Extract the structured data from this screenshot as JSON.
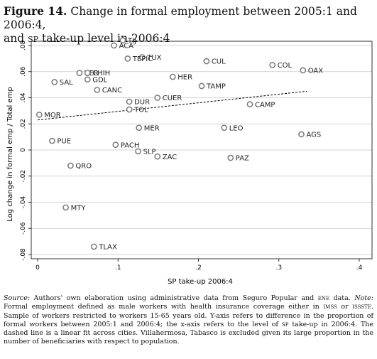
{
  "figure": {
    "number": "Figure 14.",
    "title_part1": "Change in formal employment between 2005:1 and 2006:4,",
    "title_part2_pre": "and",
    "title_part2_sc": "sp",
    "title_part2_post": "take-up level in 2006:4"
  },
  "chart_data": {
    "type": "scatter",
    "xlabel": "SP take-up 2006:4",
    "ylabel": "Log change in formal emp / Total emp",
    "xlim": [
      0,
      0.4
    ],
    "ylim": [
      -0.08,
      0.08
    ],
    "xticks": [
      0,
      0.1,
      0.2,
      0.3,
      0.4
    ],
    "xtick_labels": [
      "0",
      ".1",
      ".2",
      ".3",
      ".4"
    ],
    "yticks": [
      -0.08,
      -0.06,
      -0.04,
      -0.02,
      0,
      0.02,
      0.04,
      0.06,
      0.08
    ],
    "ytick_labels": [
      "-.08",
      "-.06",
      "-.04",
      "-.02",
      "0",
      ".02",
      ".04",
      ".06",
      ".08"
    ],
    "grid": "horizontal",
    "points": [
      {
        "label": "TIJ",
        "x": 0.106,
        "y": 0.084
      },
      {
        "label": "ACA",
        "x": 0.095,
        "y": 0.08
      },
      {
        "label": "TUX",
        "x": 0.13,
        "y": 0.071
      },
      {
        "label": "TEPIC",
        "x": 0.112,
        "y": 0.07
      },
      {
        "label": "CUL",
        "x": 0.21,
        "y": 0.068
      },
      {
        "label": "COL",
        "x": 0.292,
        "y": 0.065
      },
      {
        "label": "OAX",
        "x": 0.33,
        "y": 0.061
      },
      {
        "label": "VER",
        "x": 0.052,
        "y": 0.059
      },
      {
        "label": "CHIH",
        "x": 0.062,
        "y": 0.059
      },
      {
        "label": "GDL",
        "x": 0.062,
        "y": 0.054
      },
      {
        "label": "HER",
        "x": 0.168,
        "y": 0.056
      },
      {
        "label": "SAL",
        "x": 0.021,
        "y": 0.052
      },
      {
        "label": "TAMP",
        "x": 0.204,
        "y": 0.049
      },
      {
        "label": "CANC",
        "x": 0.074,
        "y": 0.046
      },
      {
        "label": "CUER",
        "x": 0.149,
        "y": 0.04
      },
      {
        "label": "DUR",
        "x": 0.114,
        "y": 0.037
      },
      {
        "label": "CAMP",
        "x": 0.264,
        "y": 0.035
      },
      {
        "label": "TOL",
        "x": 0.114,
        "y": 0.031
      },
      {
        "label": "MOR",
        "x": 0.002,
        "y": 0.027
      },
      {
        "label": "MER",
        "x": 0.126,
        "y": 0.017
      },
      {
        "label": "LEO",
        "x": 0.232,
        "y": 0.017
      },
      {
        "label": "AGS",
        "x": 0.328,
        "y": 0.012
      },
      {
        "label": "PUE",
        "x": 0.018,
        "y": 0.007
      },
      {
        "label": "PACH",
        "x": 0.097,
        "y": 0.004
      },
      {
        "label": "SLP",
        "x": 0.125,
        "y": -0.001
      },
      {
        "label": "ZAC",
        "x": 0.149,
        "y": -0.005
      },
      {
        "label": "PAZ",
        "x": 0.24,
        "y": -0.006
      },
      {
        "label": "QRO",
        "x": 0.041,
        "y": -0.012
      },
      {
        "label": "MTY",
        "x": 0.035,
        "y": -0.044
      },
      {
        "label": "TLAX",
        "x": 0.07,
        "y": -0.074
      }
    ],
    "fit_line": {
      "x": [
        0,
        0.335
      ],
      "y": [
        0.023,
        0.045
      ],
      "style": "dashed"
    }
  },
  "note": {
    "source_label": "Source:",
    "source_text_a": " Authors' own elaboration using administrative data from Seguro Popular and ",
    "ene": "ene",
    "source_text_b": " data. ",
    "note_label": "Note:",
    "note_text_a": " Formal employment defined as male workers with health insurance coverage either in ",
    "imss": "imss",
    "or_word": " or ",
    "issste": "issste",
    "note_text_b": ". Sample of workers restricted to workers 15-65 years old. Y-axis refers to difference in the proportion of formal workers between 2005:1 and 2006:4; the x-axis refers to the level of ",
    "sp": "sp",
    "note_text_c": " take-up in 2006:4. The dashed line is a linear fit across cities. Villahermosa, Tabasco is excluded given its large proportion in the number of beneficiaries with respect to population."
  }
}
